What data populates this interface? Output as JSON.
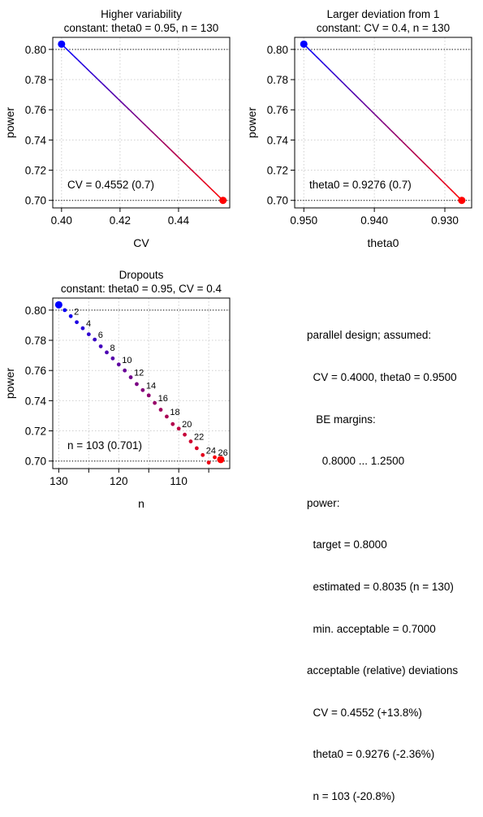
{
  "chart_data": [
    {
      "type": "line",
      "title": "Higher variability",
      "subtitle": "constant: theta0 = 0.95, n = 130",
      "xlabel": "CV",
      "ylabel": "power",
      "xlim": [
        0.397,
        0.4575
      ],
      "ylim": [
        0.695,
        0.808
      ],
      "x_reversed": false,
      "xticks": [
        0.4,
        0.42,
        0.44
      ],
      "xtick_labels": [
        "0.40",
        "0.42",
        "0.44"
      ],
      "yticks": [
        0.7,
        0.72,
        0.74,
        0.76,
        0.78,
        0.8
      ],
      "ytick_labels": [
        "0.70",
        "0.72",
        "0.74",
        "0.76",
        "0.78",
        "0.80"
      ],
      "grid": true,
      "hlines": [
        0.8,
        0.7
      ],
      "series": [
        {
          "x": [
            0.4,
            0.4552
          ],
          "values": [
            0.8035,
            0.7
          ],
          "gradient": [
            "#0000ff",
            "#ff0000"
          ]
        }
      ],
      "points": [
        {
          "x": 0.4,
          "y": 0.8035,
          "color": "#0000ff"
        },
        {
          "x": 0.4552,
          "y": 0.7,
          "color": "#ff0000"
        }
      ],
      "annotation": "CV = 0.4552 (0.7)"
    },
    {
      "type": "line",
      "title": "Larger deviation from 1",
      "subtitle": "constant: CV = 0.4, n = 130",
      "xlabel": "theta0",
      "ylabel": "power",
      "xlim": [
        0.9513,
        0.9262
      ],
      "ylim": [
        0.695,
        0.808
      ],
      "x_reversed": true,
      "xticks": [
        0.95,
        0.94,
        0.93
      ],
      "xtick_labels": [
        "0.950",
        "0.940",
        "0.930"
      ],
      "yticks": [
        0.7,
        0.72,
        0.74,
        0.76,
        0.78,
        0.8
      ],
      "ytick_labels": [
        "0.70",
        "0.72",
        "0.74",
        "0.76",
        "0.78",
        "0.80"
      ],
      "grid": true,
      "hlines": [
        0.8,
        0.7
      ],
      "series": [
        {
          "x": [
            0.95,
            0.9276
          ],
          "values": [
            0.8035,
            0.7
          ],
          "gradient": [
            "#0000ff",
            "#ff0000"
          ]
        }
      ],
      "points": [
        {
          "x": 0.95,
          "y": 0.8035,
          "color": "#0000ff"
        },
        {
          "x": 0.9276,
          "y": 0.7,
          "color": "#ff0000"
        }
      ],
      "annotation": "theta0 = 0.9276 (0.7)"
    },
    {
      "type": "scatter",
      "title": "Dropouts",
      "subtitle": "constant: theta0 = 0.95, CV = 0.4",
      "xlabel": "n",
      "ylabel": "power",
      "xlim": [
        131,
        101.5
      ],
      "ylim": [
        0.695,
        0.808
      ],
      "x_reversed": true,
      "xticks": [
        130,
        125,
        120,
        115,
        110,
        105
      ],
      "xtick_labels": [
        "130",
        "",
        "120",
        "",
        "110",
        ""
      ],
      "yticks": [
        0.7,
        0.72,
        0.74,
        0.76,
        0.78,
        0.8
      ],
      "ytick_labels": [
        "0.70",
        "0.72",
        "0.74",
        "0.76",
        "0.78",
        "0.80"
      ],
      "grid": true,
      "hlines": [
        0.8,
        0.7
      ],
      "series": [
        {
          "x": [
            130,
            129,
            128,
            127,
            126,
            125,
            124,
            123,
            122,
            121,
            120,
            119,
            118,
            117,
            116,
            115,
            114,
            113,
            112,
            111,
            110,
            109,
            108,
            107,
            106,
            105,
            104,
            103
          ],
          "values": [
            0.8035,
            0.8,
            0.796,
            0.792,
            0.788,
            0.784,
            0.7805,
            0.776,
            0.772,
            0.768,
            0.764,
            0.76,
            0.7555,
            0.751,
            0.747,
            0.7435,
            0.7385,
            0.734,
            0.7295,
            0.7245,
            0.7215,
            0.7175,
            0.713,
            0.7085,
            0.704,
            0.699,
            0.7025,
            0.701
          ],
          "gradient": [
            "#0000ff",
            "#ff0000"
          ]
        }
      ],
      "point_labels": [
        {
          "x": 128,
          "label": "2"
        },
        {
          "x": 126,
          "label": "4"
        },
        {
          "x": 124,
          "label": "6"
        },
        {
          "x": 122,
          "label": "8"
        },
        {
          "x": 120,
          "label": "10"
        },
        {
          "x": 118,
          "label": "12"
        },
        {
          "x": 116,
          "label": "14"
        },
        {
          "x": 114,
          "label": "16"
        },
        {
          "x": 112,
          "label": "18"
        },
        {
          "x": 110,
          "label": "20"
        },
        {
          "x": 108,
          "label": "22"
        },
        {
          "x": 106,
          "label": "24"
        },
        {
          "x": 104,
          "label": "26"
        }
      ],
      "endpoints": [
        {
          "x": 130,
          "y": 0.8035,
          "color": "#0000ff"
        },
        {
          "x": 103,
          "y": 0.701,
          "color": "#ff0000"
        }
      ],
      "annotation": "n = 103 (0.701)"
    }
  ],
  "info_panel": {
    "lines": [
      "parallel design; assumed:",
      "  CV = 0.4000, theta0 = 0.9500",
      "   BE margins:",
      "     0.8000 ... 1.2500",
      "power:",
      "  target = 0.8000",
      "  estimated = 0.8035 (n = 130)",
      "  min. acceptable = 0.7000",
      "acceptable (relative) deviations",
      "  CV = 0.4552 (+13.8%)",
      "  theta0 = 0.9276 (-2.36%)",
      "  n = 103 (-20.8%)"
    ]
  }
}
